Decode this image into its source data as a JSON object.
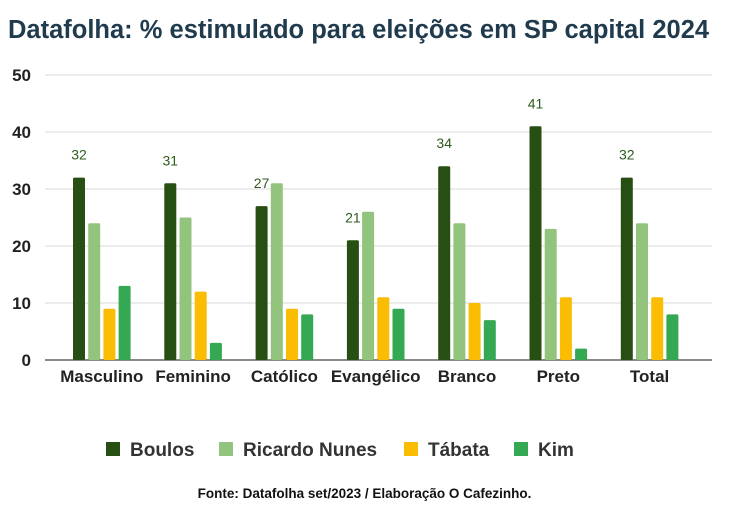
{
  "chart_data": {
    "type": "bar",
    "title": "Datafolha: % estimulado para eleições em SP capital 2024",
    "categories": [
      "Masculino",
      "Feminino",
      "Católico",
      "Evangélico",
      "Branco",
      "Preto",
      "Total"
    ],
    "series": [
      {
        "name": "Boulos",
        "color": "#274e13",
        "values": [
          32,
          31,
          27,
          21,
          34,
          41,
          32
        ]
      },
      {
        "name": "Ricardo Nunes",
        "color": "#93c47d",
        "values": [
          24,
          25,
          31,
          26,
          24,
          23,
          24
        ]
      },
      {
        "name": "Tábata",
        "color": "#fbbc04",
        "values": [
          9,
          12,
          9,
          11,
          10,
          11,
          11
        ]
      },
      {
        "name": "Kim",
        "color": "#34a853",
        "values": [
          13,
          3,
          8,
          9,
          7,
          2,
          8
        ]
      }
    ],
    "data_labels": {
      "series": "Boulos",
      "color": "#2e5a1c"
    },
    "ylim": [
      0,
      50
    ],
    "yticks": [
      0,
      10,
      20,
      30,
      40,
      50
    ],
    "grid": true,
    "legend": "bottom",
    "source": "Fonte: Datafolha set/2023 / Elaboração O Cafezinho."
  }
}
